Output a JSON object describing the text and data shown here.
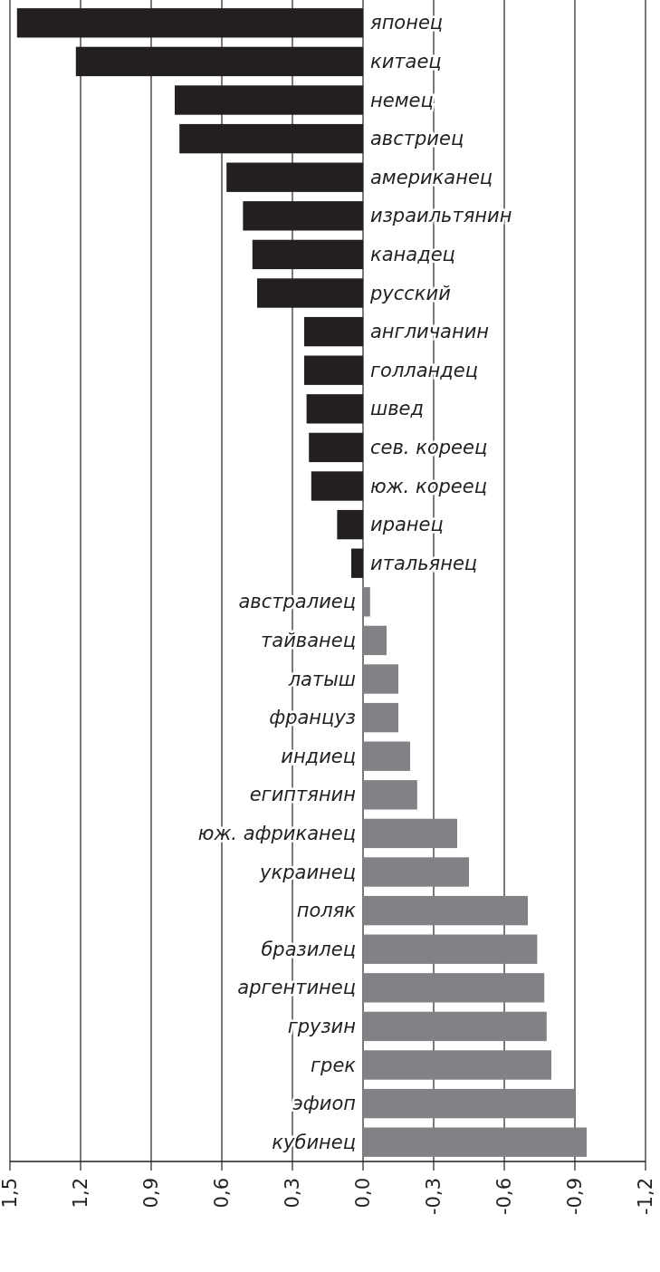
{
  "chart_data": {
    "type": "bar",
    "orientation": "horizontal",
    "categories": [
      "японец",
      "китаец",
      "немец",
      "австриец",
      "американец",
      "израильтянин",
      "канадец",
      "русский",
      "англичанин",
      "голландец",
      "швед",
      "сев. кореец",
      "юж. кореец",
      "иранец",
      "итальянец",
      "австралиец",
      "тайванец",
      "латыш",
      "француз",
      "индиец",
      "египтянин",
      "юж. африканец",
      "украинец",
      "поляк",
      "бразилец",
      "аргентинец",
      "грузин",
      "грек",
      "эфиоп",
      "кубинец"
    ],
    "values": [
      1.47,
      1.22,
      0.8,
      0.78,
      0.58,
      0.51,
      0.47,
      0.45,
      0.25,
      0.25,
      0.24,
      0.23,
      0.22,
      0.11,
      0.05,
      -0.03,
      -0.1,
      -0.15,
      -0.15,
      -0.2,
      -0.23,
      -0.4,
      -0.45,
      -0.7,
      -0.74,
      -0.77,
      -0.78,
      -0.8,
      -0.9,
      -0.95
    ],
    "colors": [
      "#231f20",
      "#231f20",
      "#231f20",
      "#231f20",
      "#231f20",
      "#231f20",
      "#231f20",
      "#231f20",
      "#231f20",
      "#231f20",
      "#231f20",
      "#231f20",
      "#231f20",
      "#231f20",
      "#231f20",
      "#808285",
      "#808285",
      "#808285",
      "#808285",
      "#808285",
      "#808285",
      "#808285",
      "#808285",
      "#808285",
      "#808285",
      "#808285",
      "#808285",
      "#808285",
      "#808285",
      "#808285"
    ],
    "xlim": [
      1.5,
      -1.2
    ],
    "xticks": [
      {
        "value": 1.5,
        "label": "1,5"
      },
      {
        "value": 1.2,
        "label": "1,2"
      },
      {
        "value": 0.9,
        "label": "0,9"
      },
      {
        "value": 0.6,
        "label": "0,6"
      },
      {
        "value": 0.3,
        "label": "0,3"
      },
      {
        "value": 0,
        "label": "0,0"
      },
      {
        "value": -0.3,
        "label": "-0,3"
      },
      {
        "value": -0.6,
        "label": "-0,6"
      },
      {
        "value": -0.9,
        "label": "-0,9"
      },
      {
        "value": -1.2,
        "label": "-1,2"
      }
    ],
    "grid": "x"
  }
}
